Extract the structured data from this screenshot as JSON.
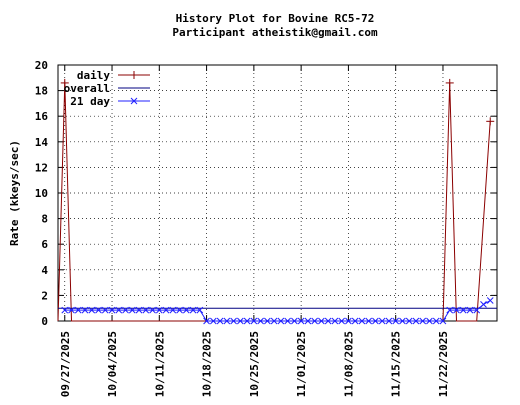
{
  "chart_data": {
    "type": "line",
    "title": "History Plot for Bovine RC5-72",
    "subtitle": "Participant atheistik@gmail.com",
    "xlabel": "",
    "ylabel": "Rate (kkeys/sec)",
    "x_range": [
      "2025-09-26",
      "2025-11-30"
    ],
    "ylim": [
      0,
      20
    ],
    "y_ticks": [
      0,
      2,
      4,
      6,
      8,
      10,
      12,
      14,
      16,
      18,
      20
    ],
    "x_ticks": [
      "09/27/2025",
      "10/04/2025",
      "10/11/2025",
      "10/18/2025",
      "10/25/2025",
      "11/01/2025",
      "11/08/2025",
      "11/15/2025",
      "11/22/2025"
    ],
    "grid": true,
    "legend_position": "top-left",
    "series": [
      {
        "name": "daily",
        "color": "#8b0000",
        "marker": "plus",
        "points": [
          [
            "2025-09-26",
            0
          ],
          [
            "2025-09-27",
            18.6
          ],
          [
            "2025-09-28",
            0
          ],
          [
            "2025-11-22",
            0
          ],
          [
            "2025-11-23",
            18.6
          ],
          [
            "2025-11-24",
            0
          ],
          [
            "2025-11-27",
            0
          ],
          [
            "2025-11-29",
            15.6
          ]
        ]
      },
      {
        "name": "overall",
        "color": "#000080",
        "marker": "none",
        "points": [
          [
            "2025-09-26",
            1.0
          ],
          [
            "2025-11-30",
            1.0
          ]
        ]
      },
      {
        "name": "21 day",
        "color": "#2020ff",
        "marker": "x",
        "points": [
          [
            "2025-09-27",
            0.85
          ],
          [
            "2025-09-28",
            0.85
          ],
          [
            "2025-09-29",
            0.85
          ],
          [
            "2025-09-30",
            0.85
          ],
          [
            "2025-10-01",
            0.85
          ],
          [
            "2025-10-02",
            0.85
          ],
          [
            "2025-10-03",
            0.85
          ],
          [
            "2025-10-04",
            0.85
          ],
          [
            "2025-10-05",
            0.85
          ],
          [
            "2025-10-06",
            0.85
          ],
          [
            "2025-10-07",
            0.85
          ],
          [
            "2025-10-08",
            0.85
          ],
          [
            "2025-10-09",
            0.85
          ],
          [
            "2025-10-10",
            0.85
          ],
          [
            "2025-10-11",
            0.85
          ],
          [
            "2025-10-12",
            0.85
          ],
          [
            "2025-10-13",
            0.85
          ],
          [
            "2025-10-14",
            0.85
          ],
          [
            "2025-10-15",
            0.85
          ],
          [
            "2025-10-16",
            0.85
          ],
          [
            "2025-10-17",
            0.85
          ],
          [
            "2025-10-18",
            0.0
          ],
          [
            "2025-10-19",
            0.0
          ],
          [
            "2025-10-20",
            0.0
          ],
          [
            "2025-10-21",
            0.0
          ],
          [
            "2025-10-22",
            0.0
          ],
          [
            "2025-10-23",
            0.0
          ],
          [
            "2025-10-24",
            0.0
          ],
          [
            "2025-10-25",
            0.0
          ],
          [
            "2025-10-26",
            0.0
          ],
          [
            "2025-10-27",
            0.0
          ],
          [
            "2025-10-28",
            0.0
          ],
          [
            "2025-10-29",
            0.0
          ],
          [
            "2025-10-30",
            0.0
          ],
          [
            "2025-10-31",
            0.0
          ],
          [
            "2025-11-01",
            0.0
          ],
          [
            "2025-11-02",
            0.0
          ],
          [
            "2025-11-03",
            0.0
          ],
          [
            "2025-11-04",
            0.0
          ],
          [
            "2025-11-05",
            0.0
          ],
          [
            "2025-11-06",
            0.0
          ],
          [
            "2025-11-07",
            0.0
          ],
          [
            "2025-11-08",
            0.0
          ],
          [
            "2025-11-09",
            0.0
          ],
          [
            "2025-11-10",
            0.0
          ],
          [
            "2025-11-11",
            0.0
          ],
          [
            "2025-11-12",
            0.0
          ],
          [
            "2025-11-13",
            0.0
          ],
          [
            "2025-11-14",
            0.0
          ],
          [
            "2025-11-15",
            0.0
          ],
          [
            "2025-11-16",
            0.0
          ],
          [
            "2025-11-17",
            0.0
          ],
          [
            "2025-11-18",
            0.0
          ],
          [
            "2025-11-19",
            0.0
          ],
          [
            "2025-11-20",
            0.0
          ],
          [
            "2025-11-21",
            0.0
          ],
          [
            "2025-11-22",
            0.0
          ],
          [
            "2025-11-23",
            0.85
          ],
          [
            "2025-11-24",
            0.85
          ],
          [
            "2025-11-25",
            0.85
          ],
          [
            "2025-11-26",
            0.85
          ],
          [
            "2025-11-27",
            0.85
          ],
          [
            "2025-11-28",
            1.3
          ],
          [
            "2025-11-29",
            1.6
          ]
        ]
      }
    ]
  }
}
